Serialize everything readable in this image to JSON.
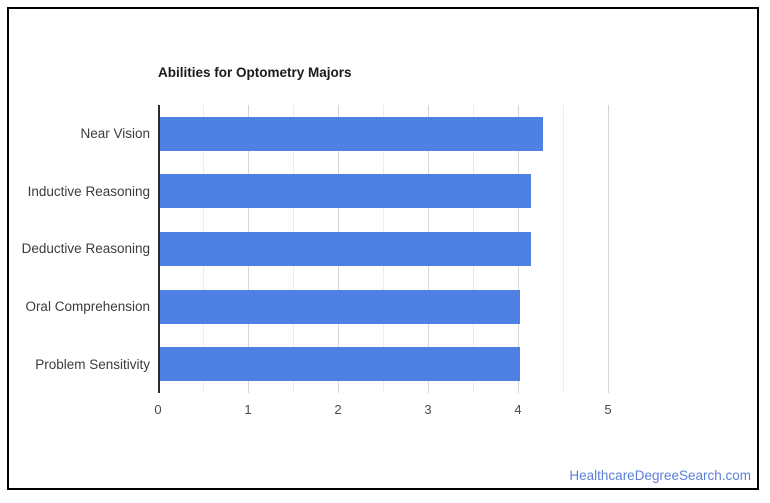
{
  "page": {
    "footer_link": "HealthcareDegreeSearch.com"
  },
  "colors": {
    "bar": "#4e81e3",
    "link": "#5b80d8",
    "axis_line": "#2b2b2b",
    "grid_major": "#d6d6d6",
    "grid_minor": "#ececec",
    "title_text": "#1a1a1a",
    "label_text": "#3c3c3c",
    "tick_text": "#4a4a4a",
    "card_border": "#000000"
  },
  "chart_data": {
    "type": "bar",
    "orientation": "horizontal",
    "title": "Abilities for Optometry Majors",
    "categories": [
      "Near Vision",
      "Inductive Reasoning",
      "Deductive Reasoning",
      "Oral Comprehension",
      "Problem Sensitivity"
    ],
    "values": [
      4.25,
      4.12,
      4.12,
      4,
      4
    ],
    "xlabel": "",
    "ylabel": "",
    "xlim": [
      0,
      5
    ],
    "x_ticks": [
      0,
      1,
      2,
      3,
      4,
      5
    ],
    "minor_gridline_step": 0.5,
    "grid": true,
    "legend": "none"
  }
}
